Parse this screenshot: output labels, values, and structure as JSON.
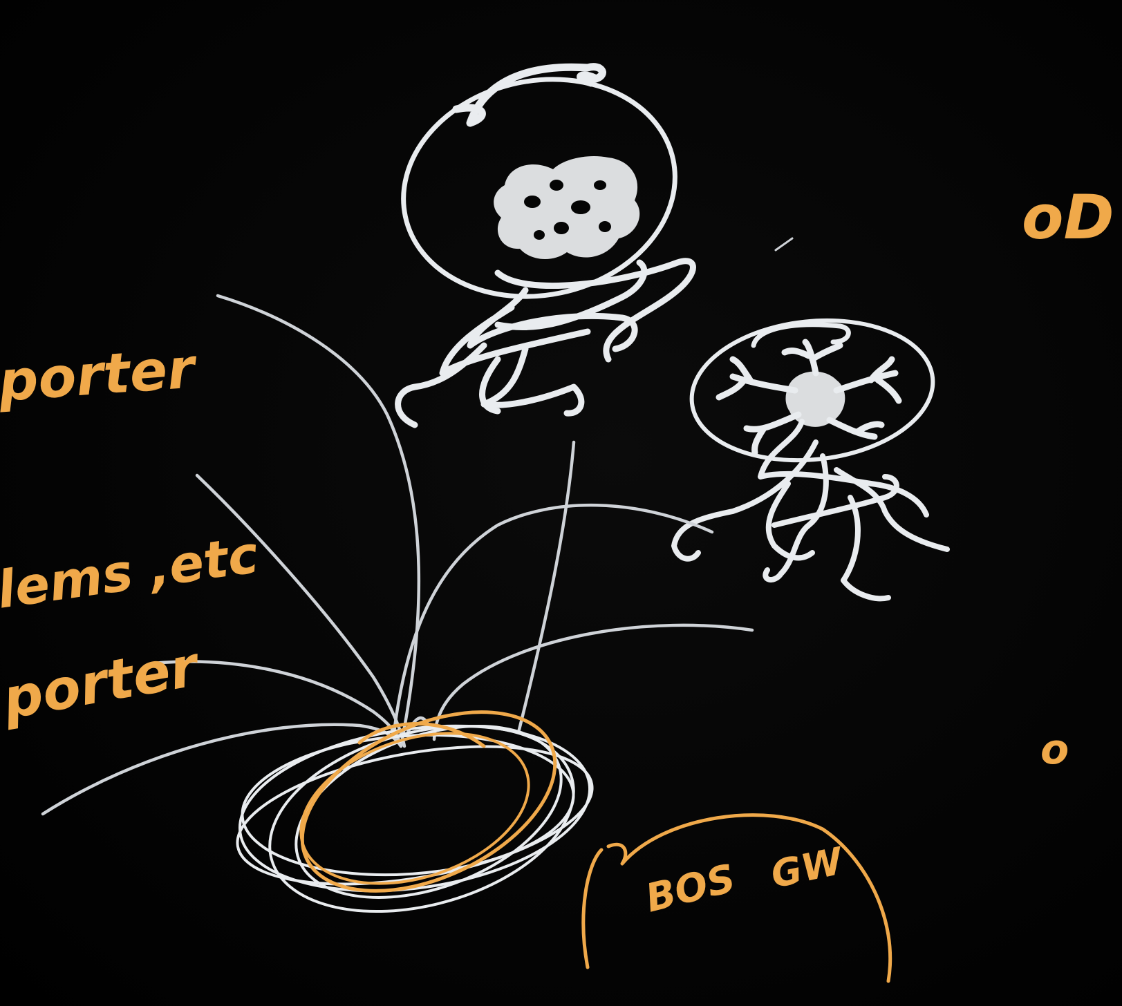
{
  "colors": {
    "background": "#000000",
    "chalk_white": "#e9ecef",
    "chalk_orange": "#f0a94a"
  },
  "annotations": {
    "left_top": "porter",
    "left_middle": "lems ,etc",
    "left_bottom": "porter",
    "circle_label_left": "BOS",
    "circle_label_right": "GW",
    "right_top_mark": "oD",
    "right_bottom_mark": "o"
  }
}
